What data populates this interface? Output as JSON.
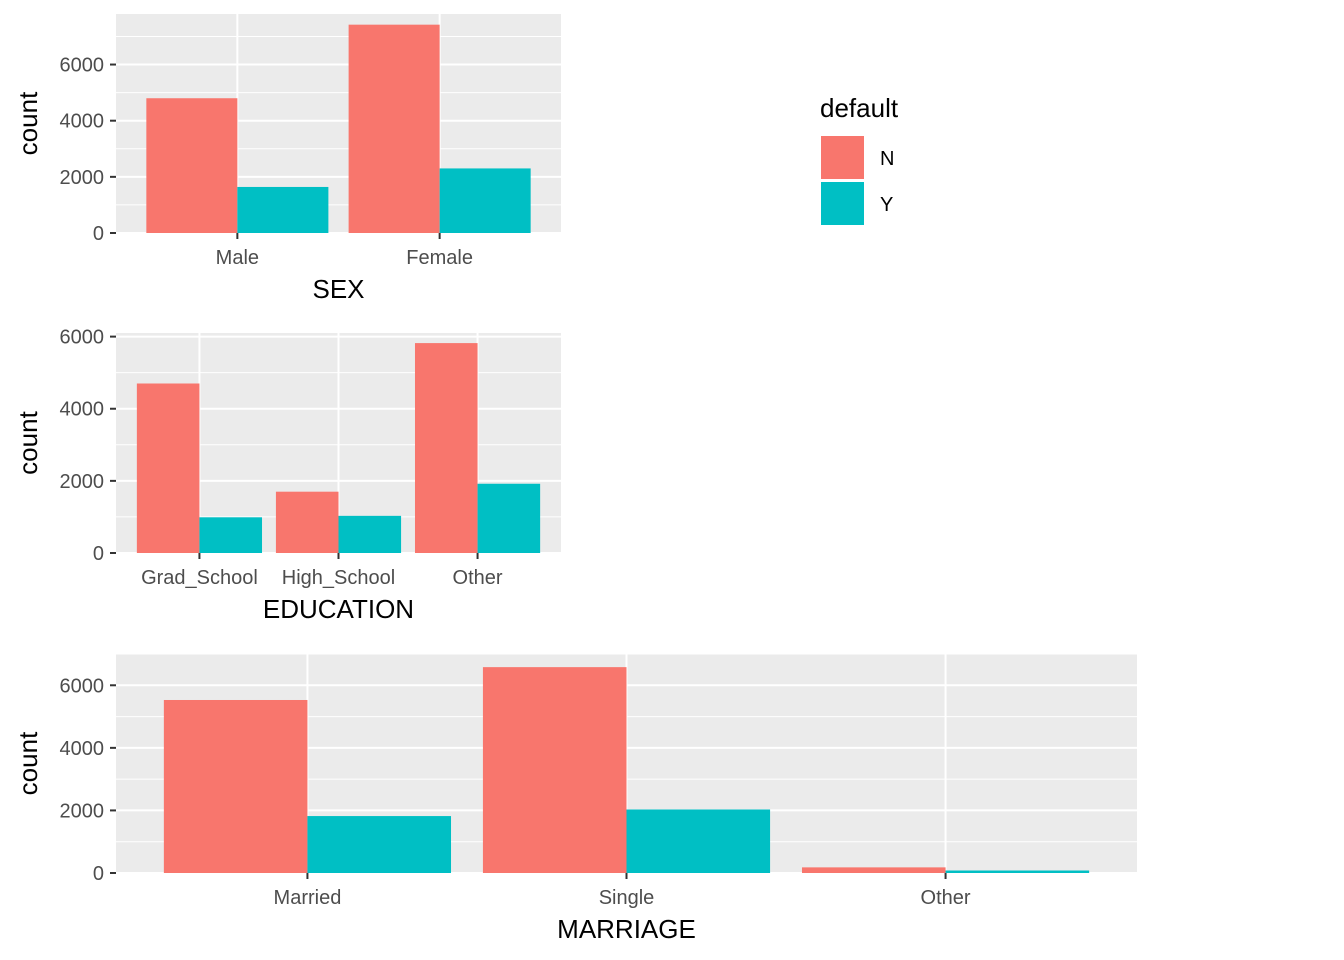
{
  "colors": {
    "N": "#F8766D",
    "Y": "#00BFC4",
    "panel": "#EBEBEB",
    "grid": "#FFFFFF",
    "tick": "#333333"
  },
  "legend": {
    "title": "default",
    "items": [
      {
        "label": "N",
        "color": "#F8766D"
      },
      {
        "label": "Y",
        "color": "#00BFC4"
      }
    ]
  },
  "chart_data": [
    {
      "type": "bar",
      "xlabel": "SEX",
      "ylabel": "count",
      "categories": [
        "Male",
        "Female"
      ],
      "series": [
        {
          "name": "N",
          "values": [
            4800,
            7420
          ]
        },
        {
          "name": "Y",
          "values": [
            1640,
            2300
          ]
        }
      ],
      "ylim": [
        0,
        7800
      ],
      "yticks": [
        0,
        2000,
        4000,
        6000
      ],
      "ytick_labels": [
        "0",
        "2000",
        "4000",
        "6000"
      ],
      "grid": true
    },
    {
      "type": "bar",
      "xlabel": "EDUCATION",
      "ylabel": "count",
      "categories": [
        "Grad_School",
        "High_School",
        "Other"
      ],
      "series": [
        {
          "name": "N",
          "values": [
            4700,
            1700,
            5820
          ]
        },
        {
          "name": "Y",
          "values": [
            990,
            1030,
            1920
          ]
        }
      ],
      "ylim": [
        0,
        6100
      ],
      "yticks": [
        0,
        2000,
        4000,
        6000
      ],
      "ytick_labels": [
        "0",
        "2000",
        "4000",
        "6000"
      ],
      "grid": true
    },
    {
      "type": "bar",
      "xlabel": "MARRIAGE",
      "ylabel": "count",
      "categories": [
        "Married",
        "Single",
        "Other"
      ],
      "series": [
        {
          "name": "N",
          "values": [
            5530,
            6580,
            180
          ]
        },
        {
          "name": "Y",
          "values": [
            1820,
            2030,
            80
          ]
        }
      ],
      "ylim": [
        0,
        7000
      ],
      "yticks": [
        0,
        2000,
        4000,
        6000
      ],
      "ytick_labels": [
        "0",
        "2000",
        "4000",
        "6000"
      ],
      "grid": true
    }
  ]
}
